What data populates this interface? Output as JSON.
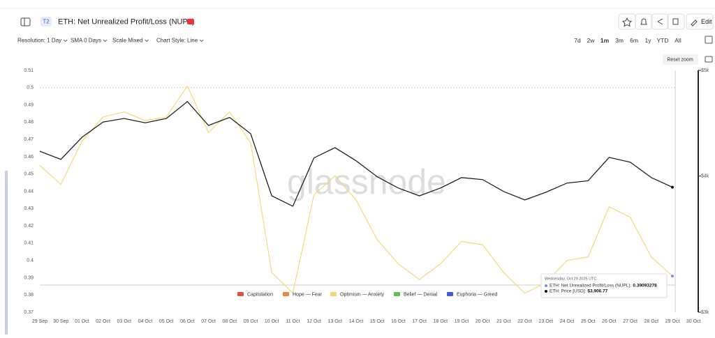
{
  "ui": {
    "badge": "T2",
    "edit": "Edit",
    "controls": [
      "Resolution: 1 Day",
      "SMA 0 Days",
      "Scale Mixed",
      "Chart Style: Line"
    ],
    "ranges": [
      "7d",
      "2w",
      "1m",
      "3m",
      "6m",
      "1y",
      "YTD",
      "All"
    ],
    "reset_zoom": "Reset zoom",
    "watermark": "glassnode",
    "tooltip": {
      "date": "Wednesday, Oct 29 2025 UTC",
      "items": [
        {
          "label": "ETH: Net Unrealized Profit/Loss (NUPL):",
          "value": "0.39093278"
        },
        {
          "label": "ETH: Price [USD]:",
          "value": "$3,906.77"
        }
      ]
    }
  },
  "chart_data": {
    "type": "line",
    "title": "ETH: Net Unrealized Profit/Loss (NUPL)",
    "categories": [
      "29 Sep",
      "30 Sep",
      "01 Oct",
      "02 Oct",
      "03 Oct",
      "04 Oct",
      "05 Oct",
      "06 Oct",
      "07 Oct",
      "08 Oct",
      "09 Oct",
      "10 Oct",
      "11 Oct",
      "12 Oct",
      "13 Oct",
      "14 Oct",
      "15 Oct",
      "16 Oct",
      "17 Oct",
      "18 Oct",
      "19 Oct",
      "20 Oct",
      "21 Oct",
      "22 Oct",
      "23 Oct",
      "24 Oct",
      "25 Oct",
      "26 Oct",
      "27 Oct",
      "28 Oct",
      "29 Oct",
      "30 Oct"
    ],
    "series": [
      {
        "color": "#f5d76e",
        "values": [
          0.455,
          0.444,
          0.469,
          0.483,
          0.486,
          0.481,
          0.483,
          0.501,
          0.474,
          0.486,
          0.468,
          0.393,
          0.381,
          0.438,
          0.449,
          0.435,
          0.412,
          0.398,
          0.389,
          0.398,
          0.411,
          0.409,
          0.393,
          0.381,
          0.387,
          0.4,
          0.402,
          0.431,
          0.425,
          0.402,
          0.39093278,
          null
        ]
      },
      {
        "color": "#222222",
        "axis": "y2",
        "values": [
          4215,
          4143,
          4341,
          4483,
          4517,
          4476,
          4517,
          4681,
          4451,
          4527,
          4374,
          3836,
          3753,
          4156,
          4247,
          4131,
          3994,
          3900,
          3836,
          3900,
          3987,
          3970,
          3871,
          3803,
          3865,
          3941,
          3960,
          4160,
          4119,
          3987,
          3906.77,
          null
        ]
      }
    ],
    "legend": [
      {
        "name": "Capitulation",
        "color": "#e0524a"
      },
      {
        "name": "Hope — Fear",
        "color": "#f0883a"
      },
      {
        "name": "Optimism — Anxiety",
        "color": "#f5d76e"
      },
      {
        "name": "Belief — Denial",
        "color": "#5cc24a"
      },
      {
        "name": "Euphoria — Greed",
        "color": "#3b5bdb"
      }
    ],
    "ylim": [
      0.37,
      0.51
    ],
    "yticks": [
      0.37,
      0.38,
      0.39,
      0.4,
      0.41,
      0.42,
      0.43,
      0.44,
      0.45,
      0.46,
      0.47,
      0.48,
      0.49,
      0.5,
      0.51
    ],
    "y2lim": [
      3000,
      5000
    ],
    "y2log": true,
    "y2ticks": [
      {
        "value": 3000,
        "label": "$3k"
      },
      {
        "value": 4000,
        "label": "$4k"
      },
      {
        "value": 5000,
        "label": "$5k"
      }
    ]
  }
}
